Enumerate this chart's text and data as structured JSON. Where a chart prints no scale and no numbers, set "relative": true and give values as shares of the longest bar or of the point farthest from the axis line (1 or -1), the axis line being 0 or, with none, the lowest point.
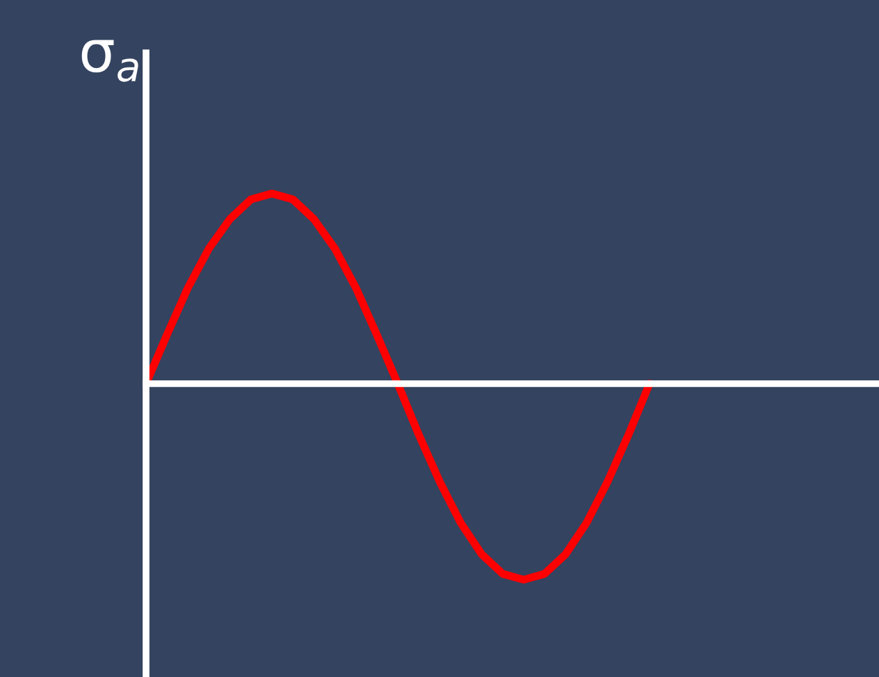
{
  "chart_data": {
    "type": "line",
    "relative": true,
    "ylabel": "σ$_{a}$",
    "color": "#ff0000",
    "categories": [
      null,
      null,
      null,
      null,
      null,
      null,
      null,
      null,
      null,
      null,
      null,
      null,
      null,
      null,
      null,
      null,
      null,
      null,
      null,
      null,
      null,
      null,
      null,
      null,
      null
    ],
    "values": [
      0,
      0.25,
      0.49,
      0.69,
      0.84,
      0.94,
      0.97,
      0.94,
      0.84,
      0.69,
      0.49,
      0.25,
      0,
      -0.26,
      -0.5,
      -0.71,
      -0.87,
      -0.97,
      -1,
      -0.97,
      -0.87,
      -0.71,
      -0.5,
      -0.26,
      0
    ],
    "legend": false,
    "marker": "none",
    "line_style": "solid"
  }
}
